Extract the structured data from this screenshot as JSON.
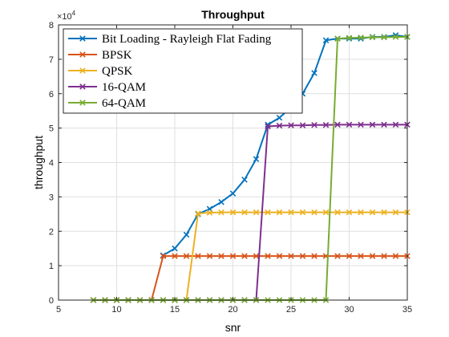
{
  "chart_data": {
    "type": "line",
    "title": "Throughput",
    "xlabel": "snr",
    "ylabel": "throughput",
    "xlim": [
      5,
      35
    ],
    "ylim": [
      0,
      80000
    ],
    "xticks": [
      5,
      10,
      15,
      20,
      25,
      30,
      35
    ],
    "yticks": [
      0,
      10000,
      20000,
      30000,
      40000,
      50000,
      60000,
      70000,
      80000
    ],
    "xtick_labels": [
      "5",
      "10",
      "15",
      "20",
      "25",
      "30",
      "35"
    ],
    "ytick_labels": [
      "0",
      "1",
      "2",
      "3",
      "4",
      "5",
      "6",
      "7",
      "8"
    ],
    "y_exponent_base": "×10",
    "y_exponent_power": "4",
    "grid": true,
    "legend_position": "top-left",
    "marker": "x",
    "series": [
      {
        "name": "Bit Loading - Rayleigh Flat Fading",
        "color": "#0072BD",
        "x": [
          14,
          15,
          16,
          17,
          18,
          19,
          20,
          21,
          22,
          23,
          24,
          25,
          26,
          27,
          28,
          29,
          30,
          31,
          32,
          33,
          34,
          35
        ],
        "y": [
          13000,
          15000,
          19000,
          25000,
          26500,
          28500,
          31000,
          35000,
          41000,
          51000,
          53000,
          56000,
          60000,
          66000,
          75500,
          76000,
          76000,
          76000,
          76500,
          76500,
          77000,
          76500
        ]
      },
      {
        "name": "BPSK",
        "color": "#D95319",
        "x": [
          8,
          9,
          10,
          11,
          12,
          13,
          14,
          15,
          16,
          17,
          18,
          19,
          20,
          21,
          22,
          23,
          24,
          25,
          26,
          27,
          28,
          29,
          30,
          31,
          32,
          33,
          34,
          35
        ],
        "y": [
          0,
          0,
          0,
          0,
          0,
          0,
          12800,
          12800,
          12800,
          12800,
          12800,
          12800,
          12800,
          12800,
          12800,
          12800,
          12800,
          12800,
          12800,
          12800,
          12800,
          12800,
          12800,
          12800,
          12800,
          12800,
          12800,
          12800
        ]
      },
      {
        "name": "QPSK",
        "color": "#EDB120",
        "x": [
          8,
          9,
          10,
          11,
          12,
          13,
          14,
          15,
          16,
          17,
          18,
          19,
          20,
          21,
          22,
          23,
          24,
          25,
          26,
          27,
          28,
          29,
          30,
          31,
          32,
          33,
          34,
          35
        ],
        "y": [
          0,
          0,
          0,
          0,
          0,
          0,
          0,
          0,
          0,
          25200,
          25400,
          25500,
          25500,
          25500,
          25500,
          25500,
          25500,
          25500,
          25500,
          25500,
          25500,
          25500,
          25500,
          25500,
          25500,
          25500,
          25500,
          25500
        ]
      },
      {
        "name": "16-QAM",
        "color": "#7E2F8E",
        "x": [
          8,
          9,
          10,
          11,
          12,
          13,
          14,
          15,
          16,
          17,
          18,
          19,
          20,
          21,
          22,
          23,
          24,
          25,
          26,
          27,
          28,
          29,
          30,
          31,
          32,
          33,
          34,
          35
        ],
        "y": [
          0,
          0,
          0,
          0,
          0,
          0,
          0,
          0,
          0,
          0,
          0,
          0,
          0,
          0,
          0,
          50500,
          50700,
          50800,
          50800,
          50900,
          50900,
          51000,
          51000,
          51000,
          51000,
          51000,
          51000,
          51000
        ]
      },
      {
        "name": "64-QAM",
        "color": "#77AC30",
        "x": [
          8,
          9,
          10,
          11,
          12,
          13,
          14,
          15,
          16,
          17,
          18,
          19,
          20,
          21,
          22,
          23,
          24,
          25,
          26,
          27,
          28,
          29,
          30,
          31,
          32,
          33,
          34,
          35
        ],
        "y": [
          0,
          0,
          0,
          0,
          0,
          0,
          0,
          0,
          0,
          0,
          0,
          0,
          0,
          0,
          0,
          0,
          0,
          0,
          0,
          0,
          0,
          76000,
          76200,
          76300,
          76400,
          76400,
          76500,
          76500
        ]
      }
    ]
  }
}
